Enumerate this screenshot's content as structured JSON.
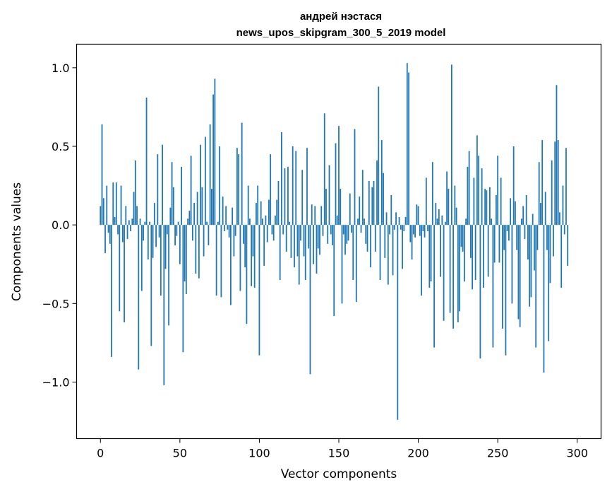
{
  "chart_data": {
    "type": "bar",
    "title": "андрей нэстася",
    "subtitle": "news_upos_skipgram_300_5_2019 model",
    "xlabel": "Vector components",
    "ylabel": "Components values",
    "xlim": [
      -15,
      315
    ],
    "ylim": [
      -1.36,
      1.15
    ],
    "xticks": [
      0,
      50,
      100,
      150,
      200,
      250,
      300
    ],
    "yticks": [
      1.0,
      0.5,
      0.0,
      -0.5,
      -1.0
    ],
    "xtick_labels": [
      "0",
      "50",
      "100",
      "150",
      "200",
      "250",
      "300"
    ],
    "ytick_labels": [
      "1.0",
      "0.5",
      "0.0",
      "−0.5",
      "−1.0"
    ],
    "bar_color": "#1f77b4",
    "grid": false,
    "values": [
      0.12,
      0.64,
      0.17,
      -0.18,
      0.25,
      -0.05,
      -0.12,
      -0.84,
      0.27,
      0.05,
      0.27,
      -0.06,
      -0.55,
      0.25,
      -0.11,
      -0.62,
      0.12,
      -0.09,
      0.03,
      -0.04,
      0.04,
      0.21,
      0.41,
      0.12,
      -0.92,
      0.04,
      -0.42,
      -0.1,
      0.02,
      0.81,
      -0.22,
      0.02,
      -0.77,
      -0.21,
      0.14,
      -0.14,
      0.45,
      -0.08,
      -0.45,
      0.51,
      -1.02,
      -0.28,
      -0.06,
      -0.64,
      0.11,
      0.4,
      0.24,
      -0.13,
      -0.07,
      0.02,
      -0.25,
      0.37,
      -0.81,
      -0.36,
      -0.44,
      0.04,
      0.09,
      0.44,
      -0.1,
      0.14,
      -0.31,
      0.21,
      -0.34,
      0.51,
      0.24,
      -0.2,
      0.56,
      0.02,
      -0.13,
      0.64,
      0.23,
      0.83,
      0.93,
      -0.45,
      0.02,
      0.5,
      -0.46,
      0.18,
      -0.04,
      0.12,
      -0.03,
      -0.08,
      -0.51,
      0.11,
      -0.2,
      -0.07,
      0.49,
      0.45,
      -0.42,
      0.65,
      -0.12,
      -0.27,
      -0.63,
      0.25,
      0.04,
      -0.39,
      -0.2,
      -0.4,
      0.14,
      0.25,
      -0.83,
      0.15,
      0.04,
      -0.26,
      0.06,
      -0.11,
      0.16,
      0.45,
      -0.06,
      -0.1,
      0.06,
      0.16,
      0.28,
      -0.35,
      0.59,
      -0.06,
      0.36,
      -0.17,
      0.37,
      0.02,
      -0.21,
      0.5,
      -0.27,
      0.47,
      -0.2,
      -0.38,
      -0.1,
      0.35,
      -0.2,
      -0.35,
      0.49,
      -0.15,
      -0.95,
      0.13,
      -0.25,
      0.12,
      -0.31,
      -0.15,
      -0.19,
      0.12,
      -0.07,
      0.71,
      0.23,
      -0.12,
      0.38,
      -0.06,
      -0.13,
      -0.58,
      0.52,
      0.06,
      0.63,
      0.23,
      -0.5,
      -0.06,
      -0.19,
      -0.12,
      -0.1,
      0.2,
      -0.05,
      -0.35,
      0.61,
      -0.49,
      0.04,
      0.18,
      -0.05,
      0.35,
      0.04,
      -0.12,
      -0.17,
      0.28,
      -0.27,
      0.24,
      0.28,
      -0.17,
      0.41,
      0.88,
      -0.35,
      0.54,
      0.33,
      -0.21,
      0.08,
      -0.38,
      -0.06,
      0.19,
      -0.32,
      -0.03,
      0.08,
      -1.24,
      0.05,
      -0.03,
      -0.28,
      -0.04,
      0.05,
      1.03,
      0.97,
      -0.11,
      -0.22,
      -0.06,
      -0.08,
      0.13,
      0.12,
      -0.07,
      -0.45,
      -0.04,
      -0.08,
      0.3,
      -0.04,
      -0.4,
      -0.36,
      0.4,
      -0.78,
      0.14,
      0.04,
      0.1,
      -0.33,
      0.06,
      -0.61,
      0.02,
      0.34,
      0.23,
      -0.56,
      1.02,
      -0.66,
      0.25,
      0.11,
      -0.62,
      -0.55,
      -0.14,
      -0.17,
      -0.36,
      0.04,
      0.37,
      0.47,
      -0.21,
      -0.41,
      0.3,
      -0.35,
      0.57,
      0.44,
      -0.85,
      0.36,
      -0.4,
      0.23,
      0.22,
      -0.33,
      0.24,
      0.04,
      -0.78,
      -0.24,
      0.19,
      0.44,
      -0.24,
      0.3,
      -0.66,
      -0.16,
      -0.83,
      -0.04,
      -0.1,
      0.17,
      -0.5,
      0.5,
      0.15,
      -0.16,
      -0.6,
      -0.65,
      0.04,
      0.12,
      -0.09,
      0.19,
      -0.22,
      -0.52,
      -0.46,
      0.07,
      -0.29,
      -0.78,
      -0.16,
      0.4,
      0.14,
      0.54,
      -0.94,
      0.21,
      -0.16,
      -0.74,
      -0.37,
      0.41,
      -0.2,
      0.53,
      0.89,
      0.54,
      0.08,
      -0.4,
      0.25,
      -0.06,
      0.49,
      -0.26
    ]
  }
}
